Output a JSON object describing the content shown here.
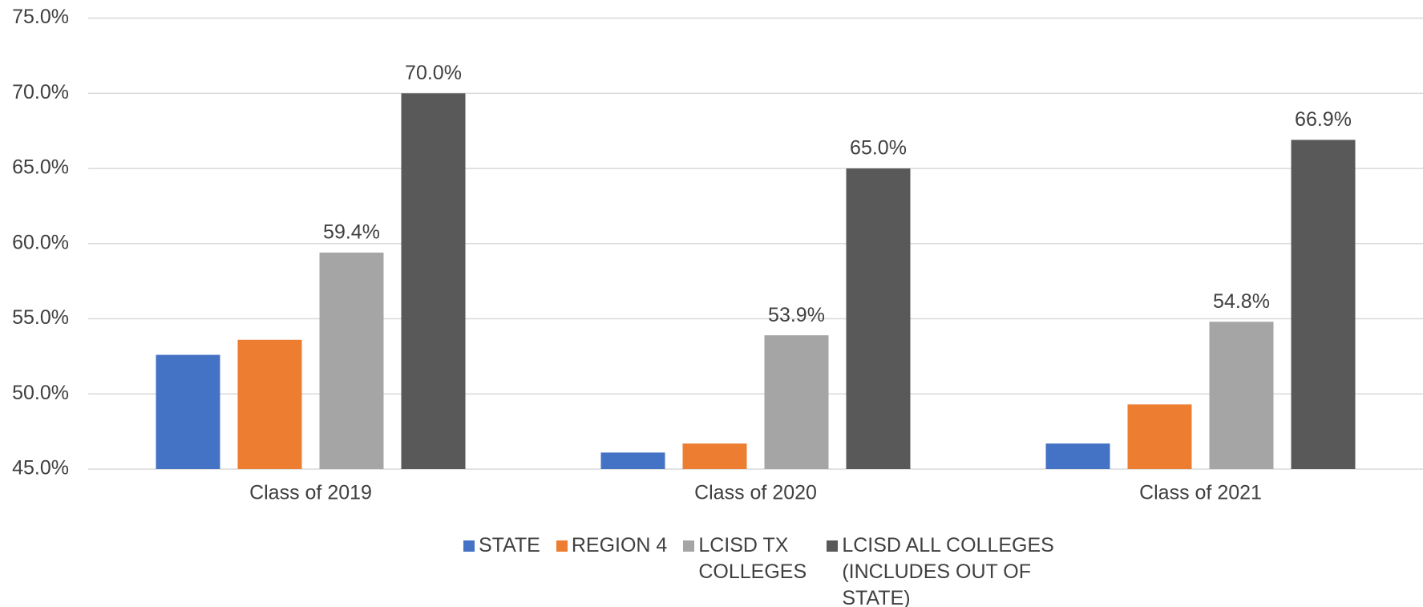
{
  "chart_data": {
    "type": "bar",
    "categories": [
      "Class of 2019",
      "Class of 2020",
      "Class of 2021"
    ],
    "series": [
      {
        "name": "STATE",
        "color": "#4472c4",
        "values": [
          52.6,
          46.1,
          46.7
        ]
      },
      {
        "name": "REGION 4",
        "color": "#ed7d31",
        "values": [
          53.6,
          46.7,
          49.3
        ]
      },
      {
        "name": "LCISD TX COLLEGES",
        "color": "#a5a5a5",
        "values": [
          59.4,
          53.9,
          54.8
        ],
        "value_labels": [
          "59.4%",
          "53.9%",
          "54.8%"
        ]
      },
      {
        "name": "LCISD ALL COLLEGES (INCLUDES OUT OF STATE)",
        "color": "#595959",
        "values": [
          70.0,
          65.0,
          66.9
        ],
        "value_labels": [
          "70.0%",
          "65.0%",
          "66.9%"
        ]
      }
    ],
    "ylim": [
      45,
      75
    ],
    "yticks": [
      {
        "value": 45,
        "label": "45.0%"
      },
      {
        "value": 50,
        "label": "50.0%"
      },
      {
        "value": 55,
        "label": "55.0%"
      },
      {
        "value": 60,
        "label": "60.0%"
      },
      {
        "value": 65,
        "label": "65.0%"
      },
      {
        "value": 70,
        "label": "70.0%"
      },
      {
        "value": 75,
        "label": "75.0%"
      }
    ],
    "grid": true,
    "legend": "bottom"
  }
}
